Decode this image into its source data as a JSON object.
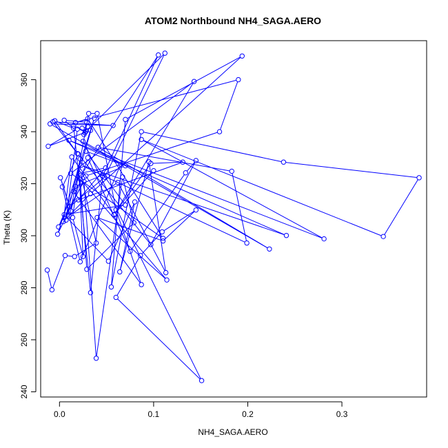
{
  "chart_data": {
    "type": "scatter",
    "title": "ATOM2 Northbound NH4_SAGA.AERO",
    "xlabel": "NH4_SAGA.AERO",
    "ylabel": "Theta (K)",
    "xlim": [
      -0.02,
      0.39
    ],
    "ylim": [
      238,
      375
    ],
    "xticks": [
      0.0,
      0.1,
      0.2,
      0.3
    ],
    "xtick_labels": [
      "0.0",
      "0.1",
      "0.2",
      "0.3"
    ],
    "yticks": [
      240,
      260,
      280,
      300,
      320,
      340,
      360
    ],
    "ytick_labels": [
      "240",
      "260",
      "280",
      "300",
      "320",
      "340",
      "360"
    ],
    "grid": false,
    "legend": "none",
    "marker": "open-circle",
    "connected": true,
    "color": "#0000ff",
    "series": [
      {
        "points": [
          [
            -0.013,
            286.8
          ],
          [
            -0.008,
            279.2
          ],
          [
            0.006,
            292.4
          ],
          [
            0.016,
            292.0
          ],
          [
            0.039,
            297.2
          ],
          [
            0.023,
            323.3
          ],
          [
            0.105,
            369.5
          ],
          [
            0.046,
            323.1
          ],
          [
            0.033,
            278.1
          ],
          [
            0.015,
            342.2
          ],
          [
            0.028,
            340.1
          ],
          [
            0.112,
            370.2
          ],
          [
            0.048,
            322.5
          ],
          [
            0.011,
            311.2
          ],
          [
            0.001,
            322.3
          ],
          [
            0.012,
            309.6
          ],
          [
            0.031,
            347.0
          ],
          [
            0.04,
            347.0
          ],
          [
            0.06,
            310.0
          ],
          [
            0.087,
            281.2
          ],
          [
            0.015,
            317.0
          ],
          [
            0.037,
            345.2
          ],
          [
            -0.002,
            300.6
          ],
          [
            0.028,
            323.0
          ],
          [
            0.17,
            340.0
          ],
          [
            0.19,
            360.0
          ],
          [
            0.017,
            343.5
          ],
          [
            0.03,
            345.0
          ],
          [
            0.11,
            299.0
          ],
          [
            0.012,
            324.0
          ],
          [
            0.143,
            359.3
          ],
          [
            0.058,
            308.0
          ],
          [
            0.013,
            330.3
          ],
          [
            0.004,
            305.4
          ],
          [
            0.033,
            316.2
          ],
          [
            0.194,
            369.1
          ],
          [
            0.07,
            344.7
          ],
          [
            0.055,
            280.3
          ],
          [
            0.087,
            340.0
          ],
          [
            0.238,
            328.3
          ],
          [
            0.382,
            322.3
          ],
          [
            0.344,
            299.7
          ],
          [
            0.087,
            337.0
          ],
          [
            0.281,
            298.8
          ],
          [
            0.01,
            336.7
          ],
          [
            0.241,
            300.1
          ],
          [
            0.023,
            327.1
          ],
          [
            0.199,
            297.2
          ],
          [
            0.183,
            324.8
          ],
          [
            0.041,
            334.0
          ],
          [
            0.223,
            294.9
          ],
          [
            0.025,
            336.3
          ],
          [
            0.151,
            244.3
          ],
          [
            0.06,
            276.3
          ],
          [
            0.086,
            292.4
          ],
          [
            0.109,
            301.5
          ],
          [
            0.145,
            309.9
          ],
          [
            0.11,
            298.0
          ],
          [
            0.04,
            307.0
          ],
          [
            0.114,
            283.0
          ],
          [
            0.022,
            321.8
          ],
          [
            0.029,
            287.1
          ],
          [
            0.079,
            305.0
          ],
          [
            0.067,
            322.6
          ],
          [
            0.039,
            252.9
          ],
          [
            0.026,
            320.9
          ],
          [
            -0.001,
            303.4
          ],
          [
            0.017,
            319.0
          ],
          [
            0.07,
            326.9
          ],
          [
            0.028,
            332.5
          ],
          [
            0.07,
            311.8
          ],
          [
            0.005,
            308.1
          ],
          [
            0.052,
            290.2
          ],
          [
            0.08,
            313.0
          ],
          [
            0.064,
            286.1
          ],
          [
            0.095,
            328.4
          ],
          [
            0.113,
            285.8
          ],
          [
            0.062,
            320.5
          ],
          [
            0.01,
            307.6
          ],
          [
            0.03,
            330.0
          ],
          [
            0.075,
            294.0
          ],
          [
            0.134,
            324.2
          ],
          [
            0.145,
            328.9
          ],
          [
            0.097,
            296.6
          ],
          [
            0.02,
            331.4
          ],
          [
            0.003,
            318.8
          ],
          [
            0.022,
            290.0
          ],
          [
            0.065,
            327.5
          ],
          [
            -0.01,
            343.0
          ],
          [
            0.057,
            342.4
          ],
          [
            -0.007,
            343.8
          ],
          [
            0.019,
            331.6
          ],
          [
            -0.005,
            344.2
          ],
          [
            0.015,
            341.3
          ],
          [
            0.005,
            344.4
          ],
          [
            0.029,
            343.6
          ],
          [
            0.026,
            338.9
          ],
          [
            0.024,
            341.3
          ],
          [
            0.03,
            342.0
          ],
          [
            0.027,
            339.6
          ],
          [
            0.033,
            340.5
          ],
          [
            -0.012,
            334.4
          ],
          [
            0.019,
            341.0
          ],
          [
            0.007,
            306.0
          ],
          [
            0.022,
            329.5
          ],
          [
            0.014,
            307.0
          ],
          [
            0.025,
            292.0
          ],
          [
            0.021,
            323.9
          ],
          [
            0.049,
            326.1
          ],
          [
            0.02,
            313.8
          ],
          [
            0.131,
            328.3
          ],
          [
            0.097,
            327.8
          ],
          [
            0.058,
            308.2
          ],
          [
            0.1,
            325.0
          ]
        ]
      }
    ]
  }
}
